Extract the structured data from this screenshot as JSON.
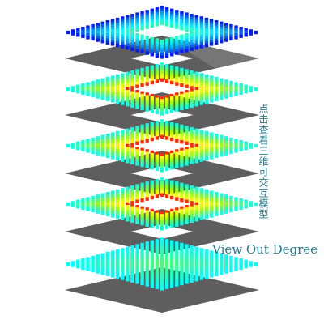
{
  "links": {
    "view_out_degree": "View Out Degree",
    "interactive_3d": "点击查看三维可交互模型"
  },
  "layers": [
    {
      "name": "layer-1",
      "heat_profile": "blue-rim-cyan-green-center",
      "hole": true
    },
    {
      "name": "layer-2",
      "heat_profile": "green-yellow-red-inner-ring",
      "hole": true
    },
    {
      "name": "layer-3",
      "heat_profile": "green-yellow-red-inner-ring",
      "hole": true
    },
    {
      "name": "layer-4",
      "heat_profile": "green-yellow-red-inner-ring",
      "hole": true
    },
    {
      "name": "layer-5",
      "heat_profile": "cyan-rim-green-center",
      "hole": false
    }
  ],
  "colors": {
    "plate": "#5e5e5e",
    "plate_light": "#8a8a8a",
    "link": "#1f7a8c",
    "ramp": [
      "#0000ff",
      "#00a0ff",
      "#00ffff",
      "#40ff80",
      "#a0ff00",
      "#ffff00",
      "#ff8000",
      "#ff0000"
    ]
  }
}
